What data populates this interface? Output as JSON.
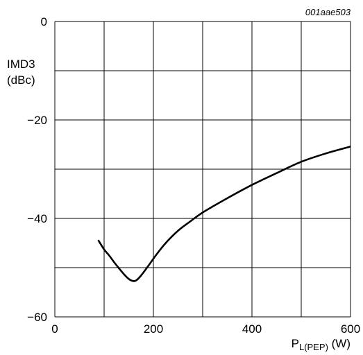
{
  "chart_data": {
    "type": "line",
    "title": "",
    "reference": "001aae503",
    "xlabel_main": "P",
    "xlabel_sub": "L(PEP)",
    "xlabel_unit": " (W)",
    "ylabel_line1": "IMD3",
    "ylabel_line2": "(dBc)",
    "xlim": [
      0,
      600
    ],
    "ylim": [
      -60,
      0
    ],
    "x_ticks": [
      0,
      200,
      400,
      600
    ],
    "x_tick_labels": [
      "0",
      "200",
      "400",
      "600"
    ],
    "y_ticks": [
      0,
      -20,
      -40,
      -60
    ],
    "y_tick_labels": [
      "0",
      "−20",
      "−40",
      "−60"
    ],
    "x_grid": [
      0,
      100,
      200,
      300,
      400,
      500,
      600
    ],
    "y_grid": [
      0,
      -10,
      -20,
      -30,
      -40,
      -50,
      -60
    ],
    "grid": true,
    "line_color": "#000000",
    "series": [
      {
        "x": [
          88,
          100,
          110,
          125,
          140,
          150,
          158,
          165,
          175,
          190,
          205,
          225,
          250,
          275,
          300,
          350,
          400,
          450,
          500,
          550,
          600
        ],
        "y": [
          -44.4,
          -46.3,
          -47.5,
          -49.5,
          -51.3,
          -52.3,
          -52.7,
          -52.6,
          -51.6,
          -49.6,
          -47.5,
          -45.0,
          -42.5,
          -40.6,
          -38.8,
          -35.9,
          -33.2,
          -30.8,
          -28.5,
          -26.8,
          -25.4
        ]
      }
    ]
  }
}
